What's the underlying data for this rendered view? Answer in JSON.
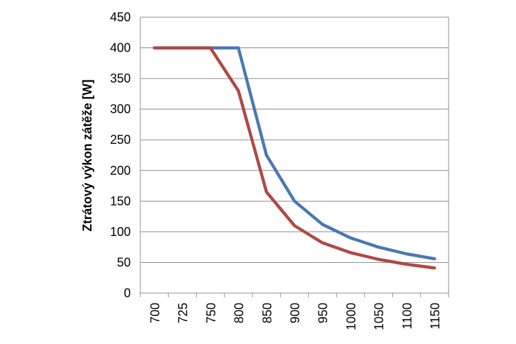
{
  "chart_data": {
    "type": "line",
    "title": "",
    "xlabel": "",
    "ylabel": "Ztrátový výkon zátěže [W]",
    "x": [
      700,
      725,
      750,
      800,
      850,
      900,
      950,
      1000,
      1050,
      1100,
      1150
    ],
    "x_tick_labels": [
      "700",
      "725",
      "750",
      "800",
      "850",
      "900",
      "950",
      "1000",
      "1050",
      "1100",
      "1150"
    ],
    "y_ticks": [
      0,
      50,
      100,
      150,
      200,
      250,
      300,
      350,
      400,
      450
    ],
    "y_tick_labels": [
      "0",
      "50",
      "100",
      "150",
      "200",
      "250",
      "300",
      "350",
      "400",
      "450"
    ],
    "ylim": [
      0,
      450
    ],
    "grid": "horizontal",
    "legend": "none",
    "series": [
      {
        "name": "blue",
        "color": "#4a77b4",
        "values": [
          400,
          400,
          400,
          400,
          225,
          150,
          112,
          90,
          75,
          64,
          56
        ]
      },
      {
        "name": "red",
        "color": "#b04846",
        "values": [
          400,
          400,
          400,
          330,
          165,
          110,
          82,
          66,
          55,
          47,
          41
        ]
      }
    ]
  }
}
